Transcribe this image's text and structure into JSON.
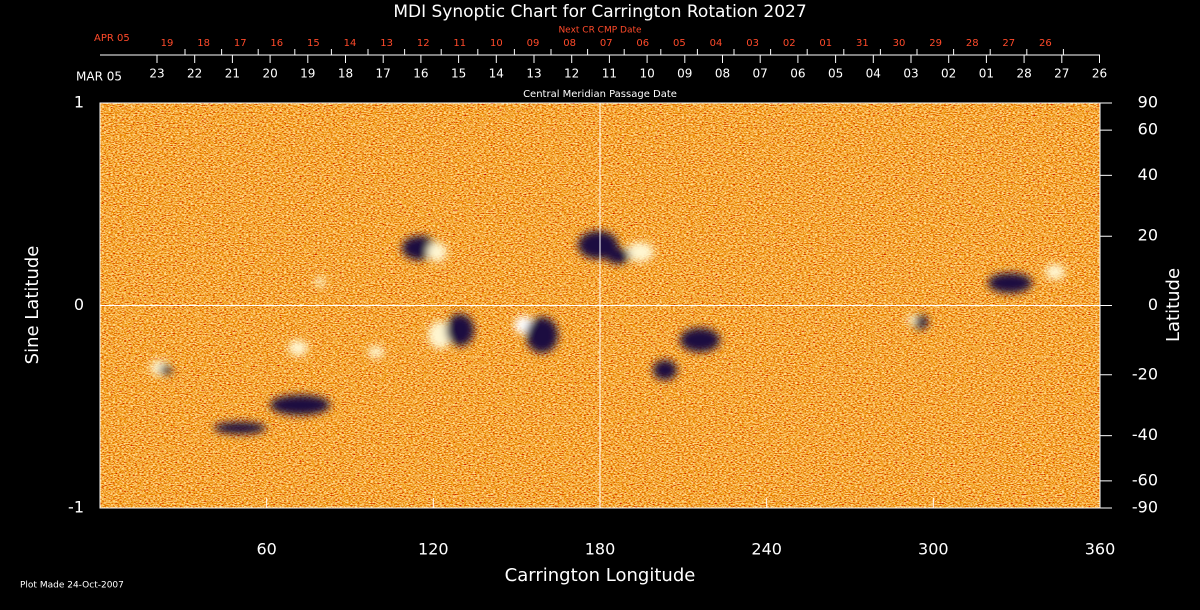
{
  "chart_data": {
    "type": "heatmap",
    "title": "MDI Synoptic Chart for Carrington Rotation 2027",
    "xlabel": "Carrington Longitude",
    "ylabel": "Sine Latitude",
    "y2label": "Latitude",
    "xlim": [
      0,
      360
    ],
    "xticks": [
      60,
      120,
      180,
      240,
      300,
      360
    ],
    "ylim": [
      -1,
      1
    ],
    "yticks": [
      -1,
      0,
      1
    ],
    "y2lim": [
      -90,
      90
    ],
    "y2ticks": [
      90,
      60,
      40,
      20,
      0,
      -20,
      -40,
      -60,
      -90
    ],
    "y2scale": "sine",
    "reference_lines": {
      "x": 180,
      "y": 0
    },
    "top_axis": {
      "label": "Central Meridian Passage Date",
      "row_label": "MAR 05",
      "categories": [
        "23",
        "22",
        "21",
        "20",
        "19",
        "18",
        "17",
        "16",
        "15",
        "14",
        "13",
        "12",
        "11",
        "10",
        "09",
        "08",
        "07",
        "06",
        "05",
        "04",
        "03",
        "02",
        "01",
        "28",
        "27",
        "26"
      ]
    },
    "top_axis2": {
      "label": "Next CR CMP Date",
      "row_label": "APR 05",
      "categories": [
        "19",
        "18",
        "17",
        "16",
        "15",
        "14",
        "13",
        "12",
        "11",
        "10",
        "09",
        "08",
        "07",
        "06",
        "05",
        "04",
        "03",
        "02",
        "01",
        "31",
        "30",
        "29",
        "28",
        "27",
        "26"
      ]
    },
    "note": "Plot Made 24-Oct-2007"
  }
}
